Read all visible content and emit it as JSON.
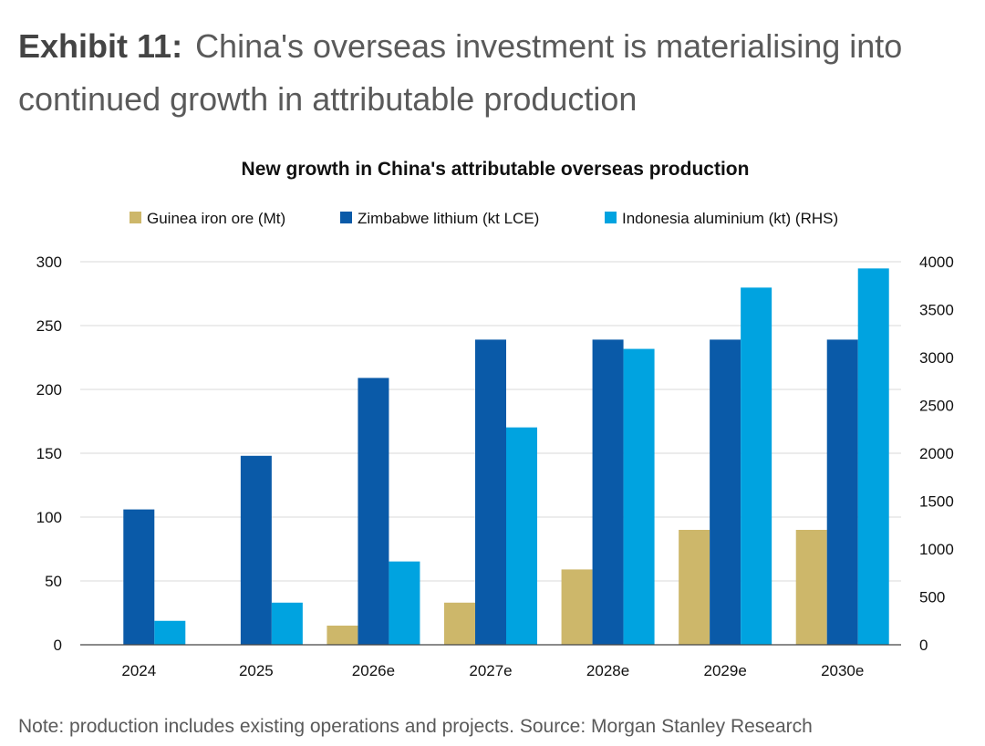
{
  "exhibit": {
    "number": "Exhibit 11:",
    "title": "China's overseas investment is materialising into continued growth in attributable production"
  },
  "footnote": "Note: production includes existing operations and projects. Source: Morgan Stanley Research",
  "chart_data": {
    "type": "bar",
    "title": "New growth in China's attributable overseas production",
    "categories": [
      "2024",
      "2025",
      "2026e",
      "2027e",
      "2028e",
      "2029e",
      "2030e"
    ],
    "series": [
      {
        "name": "Guinea iron ore (Mt)",
        "axis": "left",
        "color": "#cdb76a",
        "values": [
          0,
          0,
          15,
          33,
          59,
          90,
          90
        ]
      },
      {
        "name": "Zimbabwe lithium (kt LCE)",
        "axis": "left",
        "color": "#0a5aa8",
        "values": [
          106,
          148,
          209,
          239,
          239,
          239,
          239
        ]
      },
      {
        "name": "Indonesia aluminium (kt) (RHS)",
        "axis": "right",
        "color": "#00a3e0",
        "values": [
          250,
          440,
          870,
          2270,
          3090,
          3730,
          3930
        ]
      }
    ],
    "y_left": {
      "min": 0,
      "max": 300,
      "ticks": [
        "0",
        "50",
        "100",
        "150",
        "200",
        "250",
        "300"
      ]
    },
    "y_right": {
      "min": 0,
      "max": 4000,
      "ticks": [
        "0",
        "500",
        "1000",
        "1500",
        "2000",
        "2500",
        "3000",
        "3500",
        "4000"
      ]
    },
    "grid": true,
    "legend_position": "top"
  }
}
